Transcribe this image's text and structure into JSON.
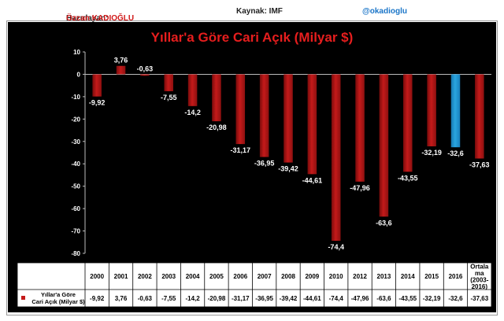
{
  "header": {
    "author_label": "Hazırlayan:",
    "author_name": "Özcan KADIOĞLU",
    "source": "Kaynak: IMF",
    "handle": "@okadioglu"
  },
  "colors": {
    "bar": "#c41a1a",
    "bar_highlight": "#2aa6e0",
    "title": "#e61e1e",
    "background": "#000000"
  },
  "chart_data": {
    "type": "bar",
    "title": "Yıllar'a Göre Cari Açık (Milyar $)",
    "xlabel": "",
    "ylabel": "",
    "ylim": [
      -80,
      10
    ],
    "yticks": [
      10,
      0,
      -10,
      -20,
      -30,
      -40,
      -50,
      -60,
      -70,
      -80
    ],
    "grid": false,
    "categories": [
      "2000",
      "2001",
      "2002",
      "2003",
      "2004",
      "2005",
      "2006",
      "2007",
      "2008",
      "2009",
      "2010",
      "2012",
      "2013",
      "2014",
      "2015",
      "2016",
      "Ortala ma (2003- 2016)"
    ],
    "category_lines": [
      [
        "2000"
      ],
      [
        "2001"
      ],
      [
        "2002"
      ],
      [
        "2003"
      ],
      [
        "2004"
      ],
      [
        "2005"
      ],
      [
        "2006"
      ],
      [
        "2007"
      ],
      [
        "2008"
      ],
      [
        "2009"
      ],
      [
        "2010"
      ],
      [
        "2012"
      ],
      [
        "2013"
      ],
      [
        "2014"
      ],
      [
        "2015"
      ],
      [
        "2016"
      ],
      [
        "Ortala",
        "ma",
        "(2003-",
        "2016)"
      ]
    ],
    "highlight_category": "2016",
    "series": [
      {
        "name": "Yıllar'a Göre Cari Açık (Milyar $)",
        "legend_lines": [
          "Yıllar'a Göre",
          "Cari Açık (Milyar $)"
        ],
        "values": [
          -9.92,
          3.76,
          -0.63,
          -7.55,
          -14.2,
          -20.98,
          -31.17,
          -36.95,
          -39.42,
          -44.61,
          -74.4,
          -47.96,
          -63.6,
          -43.55,
          -32.19,
          -32.6,
          -37.63
        ],
        "labels": [
          "-9,92",
          "3,76",
          "-0,63",
          "-7,55",
          "-14,2",
          "-20,98",
          "-31,17",
          "-36,95",
          "-39,42",
          "-44,61",
          "-74,4",
          "-47,96",
          "-63,6",
          "-43,55",
          "-32,19",
          "-32,6",
          "-37,63"
        ]
      }
    ]
  }
}
